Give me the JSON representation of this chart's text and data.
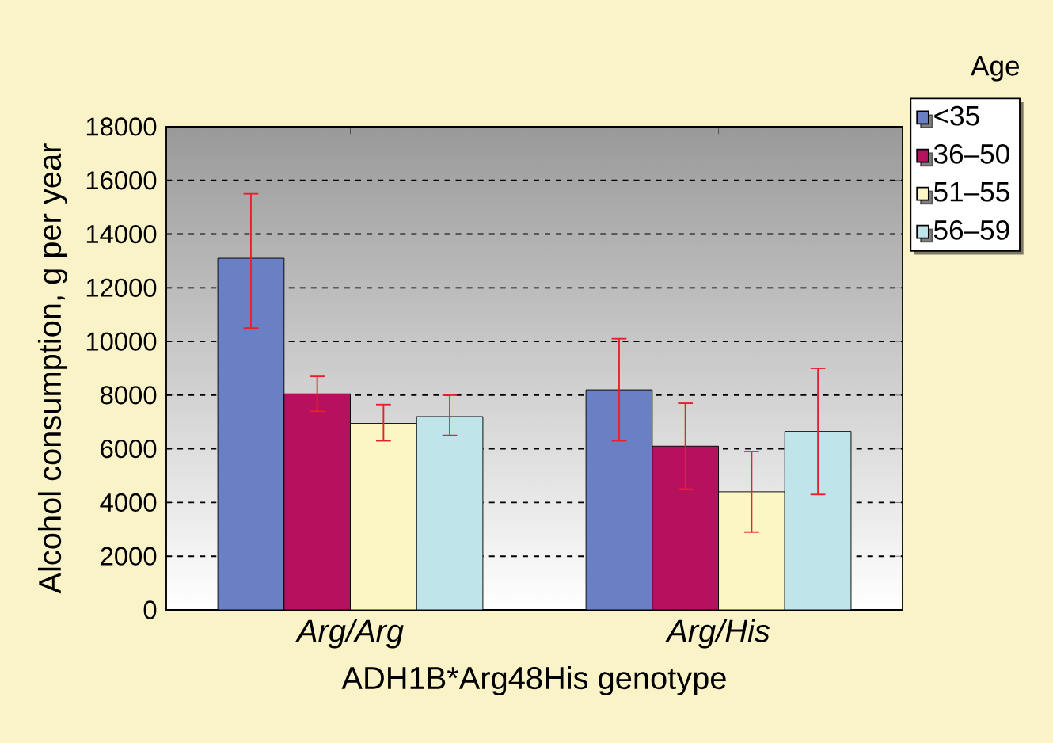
{
  "chart_data": {
    "type": "bar",
    "xlabel": "ADH1B*Arg48His genotype",
    "ylabel": "Alcohol consumption, g per year",
    "legend_title": "Age",
    "categories": [
      "Arg/Arg",
      "Arg/His"
    ],
    "series": [
      {
        "name": "<35",
        "color": "#6b7fc4",
        "values": [
          13100,
          8200
        ],
        "errors": [
          [
            10500,
            15500
          ],
          [
            6300,
            10100
          ]
        ]
      },
      {
        "name": "36–50",
        "color": "#b5115e",
        "values": [
          8050,
          6100
        ],
        "errors": [
          [
            7400,
            8700
          ],
          [
            4500,
            7700
          ]
        ]
      },
      {
        "name": "51–55",
        "color": "#fbf6c4",
        "values": [
          6950,
          4400
        ],
        "errors": [
          [
            6300,
            7650
          ],
          [
            2900,
            5900
          ]
        ]
      },
      {
        "name": "56–59",
        "color": "#bfe5ea",
        "values": [
          7200,
          6650
        ],
        "errors": [
          [
            6500,
            8000
          ],
          [
            4300,
            9000
          ]
        ]
      }
    ],
    "ylim": [
      0,
      18000
    ],
    "yticks": [
      0,
      2000,
      4000,
      6000,
      8000,
      10000,
      12000,
      14000,
      16000,
      18000
    ],
    "grid": "y",
    "legend": "right"
  }
}
